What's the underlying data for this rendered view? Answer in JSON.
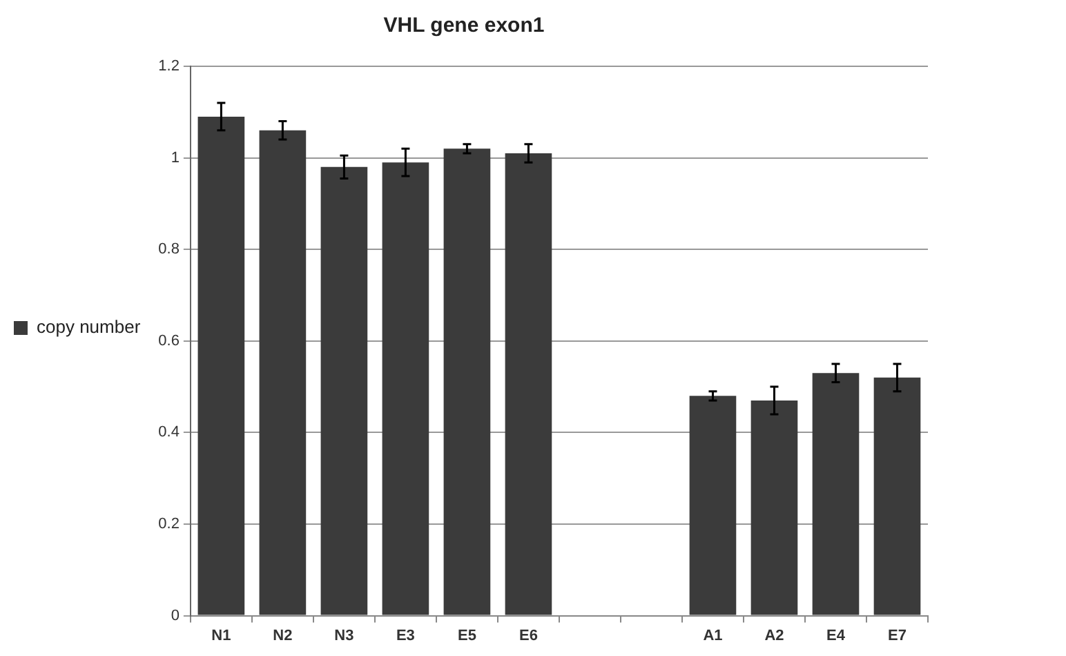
{
  "chart_data": {
    "type": "bar",
    "title": "VHL gene exon1",
    "categories": [
      "N1",
      "N2",
      "N3",
      "E3",
      "E5",
      "E6",
      null,
      null,
      "A1",
      "A2",
      "E4",
      "E7"
    ],
    "series": [
      {
        "name": "copy number",
        "color": "#3b3b3b",
        "values": [
          1.09,
          1.06,
          0.98,
          0.99,
          1.02,
          1.01,
          null,
          null,
          0.48,
          0.47,
          0.53,
          0.52
        ],
        "errors": [
          0.03,
          0.02,
          0.025,
          0.03,
          0.01,
          0.02,
          null,
          null,
          0.01,
          0.03,
          0.02,
          0.03
        ]
      }
    ],
    "ylim": [
      0,
      1.2
    ],
    "yticks": [
      0,
      0.2,
      0.4,
      0.6,
      0.8,
      1,
      1.2
    ],
    "grid": "y",
    "legend": "left"
  }
}
